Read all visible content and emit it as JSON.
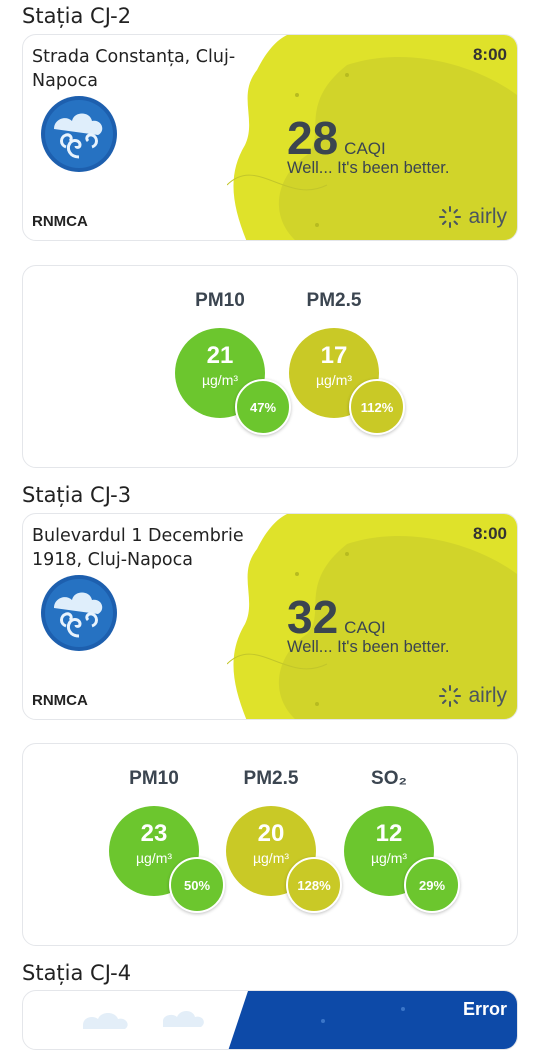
{
  "stations": [
    {
      "title": "Stația CJ-2",
      "address": "Strada Constanța, Cluj-Napoca",
      "time": "8:00",
      "source": "RNMCA",
      "caqi_value": "28",
      "caqi_unit": "CAQI",
      "caqi_message": "Well... It's been better.",
      "brand": "airly",
      "pollutants": [
        {
          "label": "PM10",
          "value": "21",
          "unit": "µg/m³",
          "percent": "47%",
          "color": "#6cc62e"
        },
        {
          "label": "PM2.5",
          "value": "17",
          "unit": "µg/m³",
          "percent": "112%",
          "color": "#c9c926"
        }
      ]
    },
    {
      "title": "Stația CJ-3",
      "address": "Bulevardul 1 Decembrie 1918, Cluj-Napoca",
      "time": "8:00",
      "source": "RNMCA",
      "caqi_value": "32",
      "caqi_unit": "CAQI",
      "caqi_message": "Well... It's been better.",
      "brand": "airly",
      "pollutants": [
        {
          "label": "PM10",
          "value": "23",
          "unit": "µg/m³",
          "percent": "50%",
          "color": "#6cc62e"
        },
        {
          "label": "PM2.5",
          "value": "20",
          "unit": "µg/m³",
          "percent": "128%",
          "color": "#c9c926"
        },
        {
          "label": "SO₂",
          "value": "12",
          "unit": "µg/m³",
          "percent": "29%",
          "color": "#6cc62e"
        }
      ]
    },
    {
      "title": "Stația CJ-4",
      "status": "Error"
    }
  ],
  "colors": {
    "blob_yellow": "#dfe22a",
    "blob_olive": "#cdd12a",
    "good_green": "#6cc62e",
    "moderate_olive": "#c9c926",
    "error_blue": "#0d4aa8"
  }
}
